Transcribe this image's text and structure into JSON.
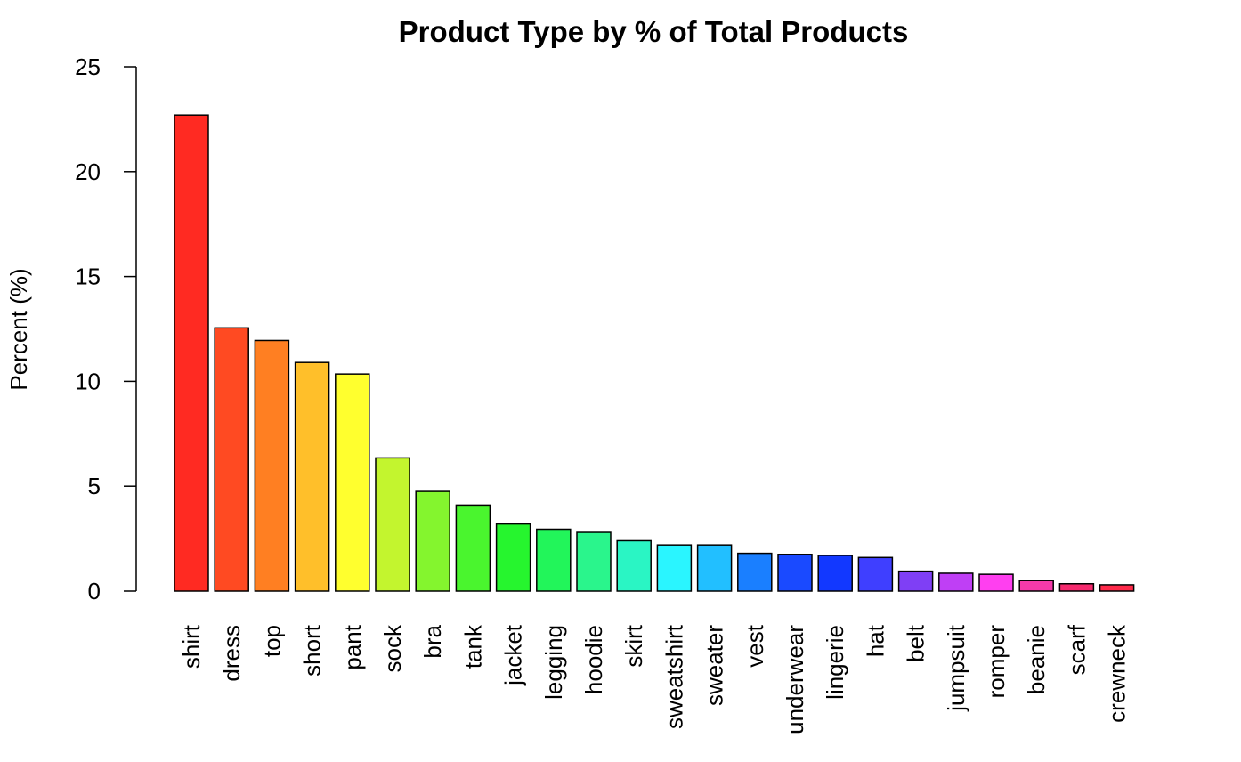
{
  "chart_data": {
    "type": "bar",
    "title": "Product Type by % of Total Products",
    "xlabel": "",
    "ylabel": "Percent (%)",
    "ylim": [
      0,
      25
    ],
    "yticks": [
      0,
      5,
      10,
      15,
      20,
      25
    ],
    "grid": false,
    "categories": [
      "shirt",
      "dress",
      "top",
      "short",
      "pant",
      "sock",
      "bra",
      "tank",
      "jacket",
      "legging",
      "hoodie",
      "skirt",
      "sweatshirt",
      "sweater",
      "vest",
      "underwear",
      "lingerie",
      "hat",
      "belt",
      "jumpsuit",
      "romper",
      "beanie",
      "scarf",
      "crewneck"
    ],
    "values": [
      22.7,
      12.55,
      11.95,
      10.9,
      10.35,
      6.35,
      4.75,
      4.1,
      3.2,
      2.95,
      2.8,
      2.4,
      2.2,
      2.2,
      1.8,
      1.75,
      1.7,
      1.6,
      0.95,
      0.85,
      0.8,
      0.5,
      0.35,
      0.3
    ],
    "colors": [
      "#FF2A22",
      "#FF4A22",
      "#FF7F22",
      "#FFBF2A",
      "#FFFF2E",
      "#C3F52E",
      "#84F52E",
      "#4AF52E",
      "#26F52E",
      "#22F55A",
      "#2AF58C",
      "#2AF5C4",
      "#2AF5FF",
      "#22BFFF",
      "#1A7FFF",
      "#1A4AFF",
      "#1238FF",
      "#3F3FFF",
      "#7F3FF5",
      "#BF3FF5",
      "#FF3FF0",
      "#F53AAA",
      "#F52A6E",
      "#FF2A4A"
    ]
  }
}
